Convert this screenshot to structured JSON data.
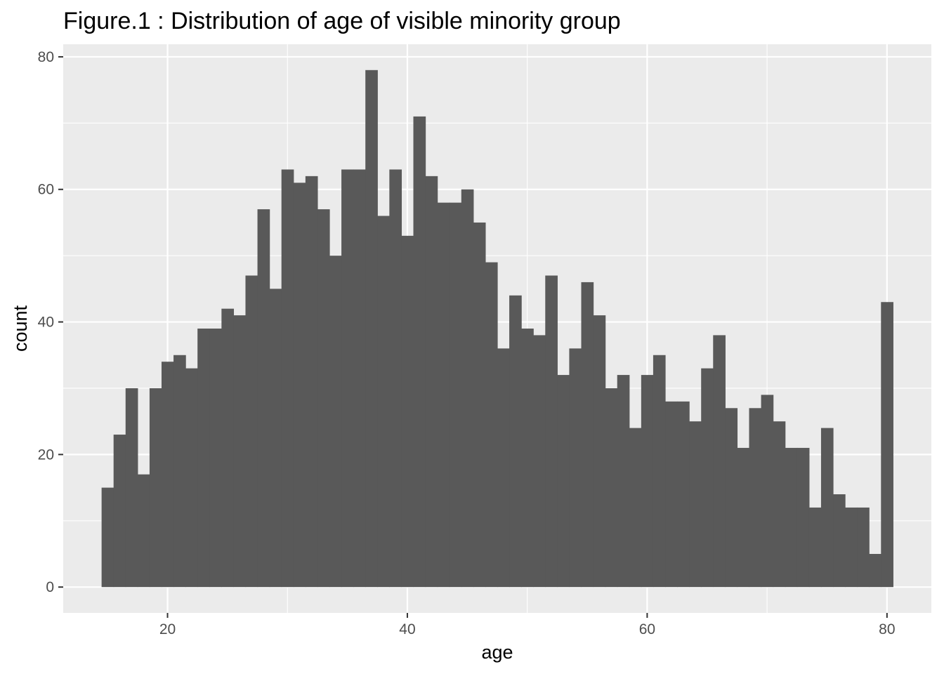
{
  "chart_data": {
    "type": "bar",
    "subtype": "histogram",
    "title": "Figure.1 : Distribution of age of visible minority group",
    "xlabel": "age",
    "ylabel": "count",
    "xlim": [
      11.3,
      83.7
    ],
    "ylim": [
      -3.9,
      81.9
    ],
    "x_ticks": [
      20,
      40,
      60,
      80
    ],
    "y_ticks": [
      0,
      20,
      40,
      60,
      80
    ],
    "x_minor_ticks": [
      30,
      50,
      70
    ],
    "y_minor_ticks": [
      10,
      30,
      50,
      70
    ],
    "grid": true,
    "legend": "none",
    "bin_start": 14.5,
    "bin_width": 1,
    "values": [
      15,
      23,
      30,
      17,
      30,
      34,
      35,
      33,
      39,
      39,
      42,
      41,
      47,
      57,
      45,
      63,
      61,
      62,
      57,
      50,
      63,
      63,
      78,
      56,
      63,
      53,
      71,
      62,
      58,
      58,
      60,
      55,
      49,
      36,
      44,
      39,
      38,
      47,
      32,
      36,
      46,
      41,
      30,
      32,
      24,
      32,
      35,
      28,
      28,
      25,
      33,
      38,
      27,
      21,
      27,
      29,
      25,
      21,
      21,
      12,
      24,
      14,
      12,
      12,
      5,
      43
    ]
  },
  "colors": {
    "panel_background": "#EBEBEB",
    "grid_major": "#FFFFFF",
    "bar_fill": "#595959",
    "tick_mark": "#333333",
    "tick_label": "#4D4D4D"
  }
}
